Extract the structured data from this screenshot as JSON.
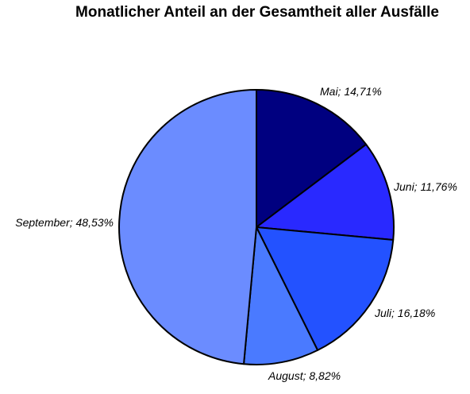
{
  "chart_data": {
    "type": "pie",
    "title": "Monatlicher Anteil an der Gesamtheit aller Ausfälle",
    "slices": [
      {
        "category": "Mai",
        "value": 14.71,
        "label": "Mai; 14,71%",
        "color": "#000080"
      },
      {
        "category": "Juni",
        "value": 11.76,
        "label": "Juni; 11,76%",
        "color": "#2929ff"
      },
      {
        "category": "Juli",
        "value": 16.18,
        "label": "Juli; 16,18%",
        "color": "#2352ff"
      },
      {
        "category": "August",
        "value": 8.82,
        "label": "August; 8,82%",
        "color": "#4a7aff"
      },
      {
        "category": "September",
        "value": 48.53,
        "label": "September; 48,53%",
        "color": "#6b8cff"
      }
    ],
    "start_angle": "12 o'clock",
    "direction": "clockwise",
    "legend": "none"
  }
}
